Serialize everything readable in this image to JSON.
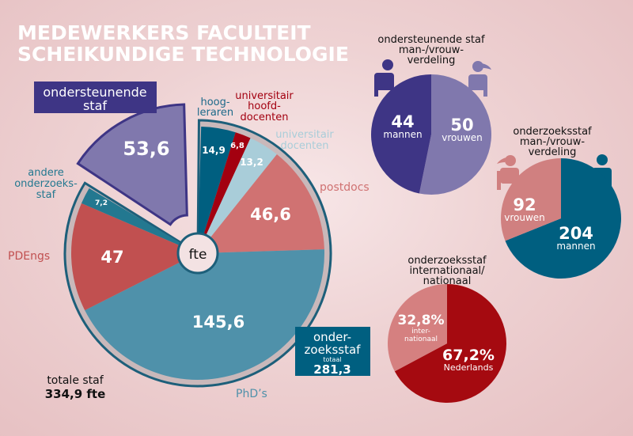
{
  "title": {
    "line1": "MEDEWERKERS FACULTEIT",
    "line2": "SCHEIKUNDIGE TECHNOLOGIE"
  },
  "colors": {
    "background": "#ecc9cb",
    "title": "#ffffff",
    "support_dark": "#3e3585",
    "support_light": "#8078ad",
    "teal_dark": "#005f80",
    "red_dark": "#a50a10"
  },
  "chart_data": [
    {
      "type": "pie",
      "center_label": "fte",
      "total_label": {
        "line1": "totale staf",
        "line2": "334,9 fte"
      },
      "total": 334.9,
      "groups": [
        {
          "name": "ondersteunende staf",
          "label_lines": [
            "ondersteunende",
            "staf"
          ],
          "value": 53.6,
          "display": "53,6",
          "color": "#8078ad",
          "exploded": true
        },
        {
          "name": "onderzoeksstaf",
          "label_lines": [
            "onder-",
            "zoeksstaf",
            "totaal"
          ],
          "value": 281.3,
          "display": "281,3",
          "slices": [
            {
              "name": "hoogleraren",
              "label_lines": [
                "hoog-",
                "leraren"
              ],
              "value": 14.9,
              "display": "14,9",
              "color": "#005f80"
            },
            {
              "name": "universitair hoofddocenten",
              "label_lines": [
                "universitair",
                "hoofd-",
                "docenten"
              ],
              "value": 6.8,
              "display": "6,8",
              "color": "#a30010"
            },
            {
              "name": "universitair docenten",
              "label_lines": [
                "universitair",
                "docenten"
              ],
              "value": 13.2,
              "display": "13,2",
              "color": "#a9cdd9"
            },
            {
              "name": "postdocs",
              "label_lines": [
                "postdocs"
              ],
              "value": 46.6,
              "display": "46,6",
              "color": "#d07272"
            },
            {
              "name": "PhD's",
              "label_lines": [
                "PhD’s"
              ],
              "value": 145.6,
              "display": "145,6",
              "color": "#4f91aa"
            },
            {
              "name": "PDEngs",
              "label_lines": [
                "PDEngs"
              ],
              "value": 47,
              "display": "47",
              "color": "#c15050"
            },
            {
              "name": "andere onderzoeksstaf",
              "label_lines": [
                "andere",
                "onderzoeks-",
                "staf"
              ],
              "value": 7.2,
              "display": "7,2",
              "color": "#237890"
            }
          ]
        }
      ]
    },
    {
      "type": "pie",
      "title_lines": [
        "ondersteunende staf",
        "man-/vrouw-",
        "verdeling"
      ],
      "slices": [
        {
          "name": "vrouwen",
          "value": 50,
          "display": "50",
          "color": "#8078ad"
        },
        {
          "name": "mannen",
          "value": 44,
          "display": "44",
          "color": "#3e3585"
        }
      ]
    },
    {
      "type": "pie",
      "title_lines": [
        "onderzoeksstaf",
        "man-/vrouw-",
        "verdeling"
      ],
      "slices": [
        {
          "name": "mannen",
          "value": 204,
          "display": "204",
          "color": "#005f80"
        },
        {
          "name": "vrouwen",
          "value": 92,
          "display": "92",
          "color": "#d08080"
        }
      ]
    },
    {
      "type": "pie",
      "title_lines": [
        "onderzoeksstaf",
        "internationaal/",
        "nationaal"
      ],
      "slices": [
        {
          "name": "Nederlands",
          "value": 67.2,
          "display": "67,2%",
          "color": "#a50a10"
        },
        {
          "name": "internationaal",
          "label_lines": [
            "inter-",
            "nationaal"
          ],
          "value": 32.8,
          "display": "32,8%",
          "color": "#d58080"
        }
      ]
    }
  ]
}
